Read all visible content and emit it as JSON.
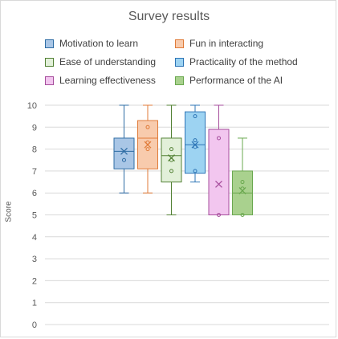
{
  "chart_data": {
    "type": "box",
    "title": "Survey results",
    "xlabel": "",
    "ylabel": "Score",
    "ylim": [
      0,
      10
    ],
    "yticks": [
      "0",
      "1",
      "2",
      "3",
      "4",
      "5",
      "6",
      "7",
      "8",
      "9",
      "10"
    ],
    "grid": true,
    "legend_position": "top",
    "series": [
      {
        "name": "Motivation to learn",
        "color": "#2e6ca4",
        "fill": "#a9c6e6",
        "min": 6,
        "q1": 7.1,
        "median": 7.9,
        "q3": 8.5,
        "max": 10,
        "mean": 7.9,
        "points": [
          7.5
        ]
      },
      {
        "name": "Fun in interacting",
        "color": "#e07b39",
        "fill": "#f8cbad",
        "min": 6,
        "q1": 7.1,
        "median": 8.5,
        "q3": 9.3,
        "max": 10,
        "mean": 8.2,
        "points": [
          9,
          8.3,
          8
        ]
      },
      {
        "name": "Ease of understanding",
        "color": "#538135",
        "fill": "#e2f0d9",
        "min": 5,
        "q1": 6.5,
        "median": 7.7,
        "q3": 8.5,
        "max": 10,
        "mean": 7.6,
        "points": [
          8,
          7.5,
          7
        ]
      },
      {
        "name": "Practicality of the method",
        "color": "#2e75b6",
        "fill": "#9dd3f2",
        "min": 6.5,
        "q1": 6.9,
        "median": 8.2,
        "q3": 9.7,
        "max": 10,
        "mean": 8.2,
        "points": [
          9.5,
          8.4,
          8.1,
          7
        ]
      },
      {
        "name": "Learning effectiveness",
        "color": "#a64d9c",
        "fill": "#f2c6ef",
        "min": 5,
        "q1": 5,
        "median": 5,
        "q3": 8.9,
        "max": 10,
        "mean": 6.4,
        "points": [
          8.5,
          5
        ]
      },
      {
        "name": "Performance of the AI",
        "color": "#6aa84f",
        "fill": "#a9d18e",
        "min": 5,
        "q1": 5,
        "median": 6,
        "q3": 7,
        "max": 8.5,
        "mean": 6.1,
        "points": [
          6.5,
          6.2,
          5
        ]
      }
    ]
  }
}
